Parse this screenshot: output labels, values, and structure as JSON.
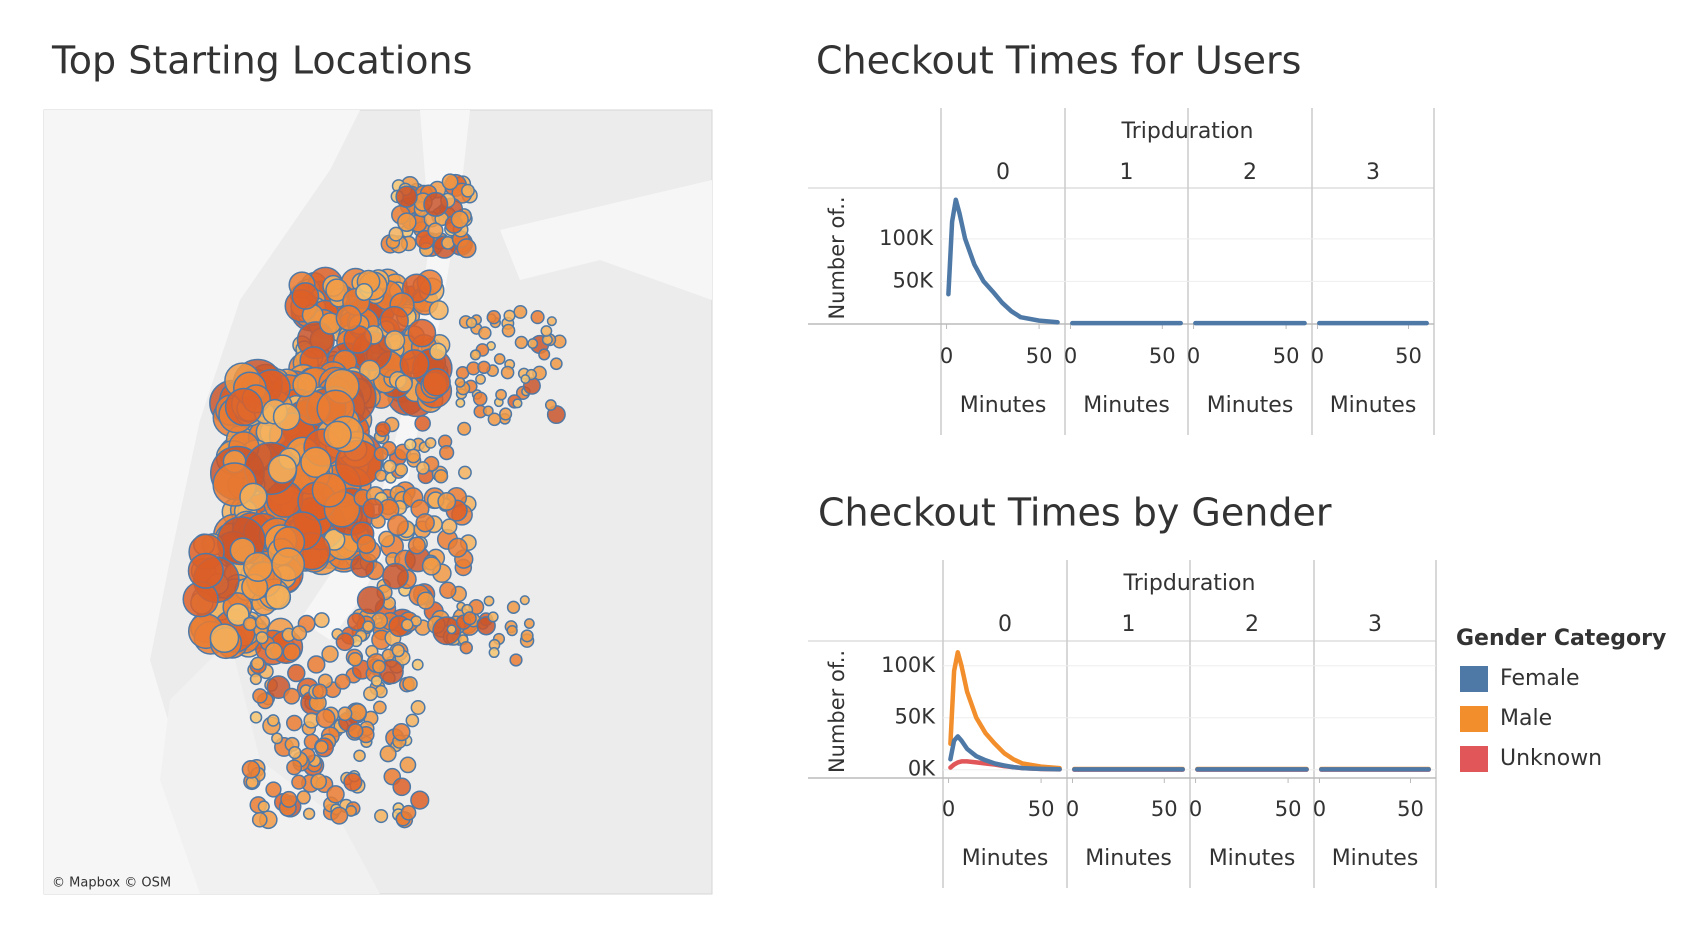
{
  "map": {
    "title": "Top Starting Locations",
    "attribution": "© Mapbox © OSM"
  },
  "chart_data": [
    {
      "type": "line",
      "title": "Checkout Times for Users",
      "facet_label": "Tripduration",
      "facets": [
        0,
        1,
        2,
        3
      ],
      "x_label": "Minutes",
      "y_label": "Number of..",
      "x": [
        1,
        3,
        5,
        7,
        10,
        15,
        20,
        25,
        30,
        35,
        40,
        50,
        60
      ],
      "xlim": [
        -3,
        64
      ],
      "xticks": [
        0,
        50
      ],
      "ylim": [
        0,
        155000
      ],
      "yticks": [
        {
          "value": 50000,
          "label": "50K"
        },
        {
          "value": 100000,
          "label": "100K"
        }
      ],
      "grid": true,
      "series": [
        {
          "color": "#4e79a7",
          "values": [
            [
              35000,
              120000,
              146000,
              130000,
              100000,
              70000,
              50000,
              38000,
              25000,
              15000,
              8000,
              4000,
              2000
            ],
            [
              1000,
              1000,
              1000,
              1000,
              1000,
              1000,
              1000,
              1000,
              1000,
              1000,
              1000,
              1000,
              1000
            ],
            [
              1000,
              1000,
              1000,
              1000,
              1000,
              1000,
              1000,
              1000,
              1000,
              1000,
              1000,
              1000,
              1000
            ],
            [
              1000,
              1000,
              1000,
              1000,
              1000,
              1000,
              1000,
              1000,
              1000,
              1000,
              1000,
              1000,
              1000
            ]
          ]
        }
      ]
    },
    {
      "type": "line",
      "title": "Checkout Times by Gender",
      "facet_label": "Tripduration",
      "facets": [
        0,
        1,
        2,
        3
      ],
      "x_label": "Minutes",
      "y_label": "Number of..",
      "x": [
        1,
        3,
        5,
        7,
        10,
        15,
        20,
        25,
        30,
        35,
        40,
        50,
        60
      ],
      "xlim": [
        -3,
        64
      ],
      "xticks": [
        0,
        50
      ],
      "ylim": [
        -8000,
        120000
      ],
      "yticks": [
        {
          "value": 0,
          "label": "0K"
        },
        {
          "value": 50000,
          "label": "50K"
        },
        {
          "value": 100000,
          "label": "100K"
        }
      ],
      "grid": true,
      "legend_title": "Gender Category",
      "legend_position": "right",
      "series": [
        {
          "name": "Female",
          "color": "#4e79a7",
          "values": [
            [
              10000,
              28000,
              32000,
              28000,
              20000,
              13000,
              9000,
              6000,
              4000,
              2500,
              1500,
              800,
              400
            ],
            [
              300,
              300,
              300,
              300,
              300,
              300,
              300,
              300,
              300,
              300,
              300,
              300,
              300
            ],
            [
              300,
              300,
              300,
              300,
              300,
              300,
              300,
              300,
              300,
              300,
              300,
              300,
              300
            ],
            [
              300,
              300,
              300,
              300,
              300,
              300,
              300,
              300,
              300,
              300,
              300,
              300,
              300
            ]
          ]
        },
        {
          "name": "Male",
          "color": "#f28e2b",
          "values": [
            [
              25000,
              95000,
              113000,
              100000,
              75000,
              50000,
              35000,
              25000,
              16000,
              10000,
              6000,
              3000,
              1500
            ],
            [
              700,
              700,
              700,
              700,
              700,
              700,
              700,
              700,
              700,
              700,
              700,
              700,
              700
            ],
            [
              700,
              700,
              700,
              700,
              700,
              700,
              700,
              700,
              700,
              700,
              700,
              700,
              700
            ],
            [
              700,
              700,
              700,
              700,
              700,
              700,
              700,
              700,
              700,
              700,
              700,
              700,
              700
            ]
          ]
        },
        {
          "name": "Unknown",
          "color": "#e15759",
          "values": [
            [
              2000,
              5000,
              7000,
              8000,
              8000,
              7000,
              6000,
              5000,
              3500,
              2500,
              1500,
              700,
              300
            ],
            [
              100,
              100,
              100,
              100,
              100,
              100,
              100,
              100,
              100,
              100,
              100,
              100,
              100
            ],
            [
              100,
              100,
              100,
              100,
              100,
              100,
              100,
              100,
              100,
              100,
              100,
              100,
              100
            ],
            [
              100,
              100,
              100,
              100,
              100,
              100,
              100,
              100,
              100,
              100,
              100,
              100,
              100
            ]
          ]
        }
      ]
    }
  ]
}
